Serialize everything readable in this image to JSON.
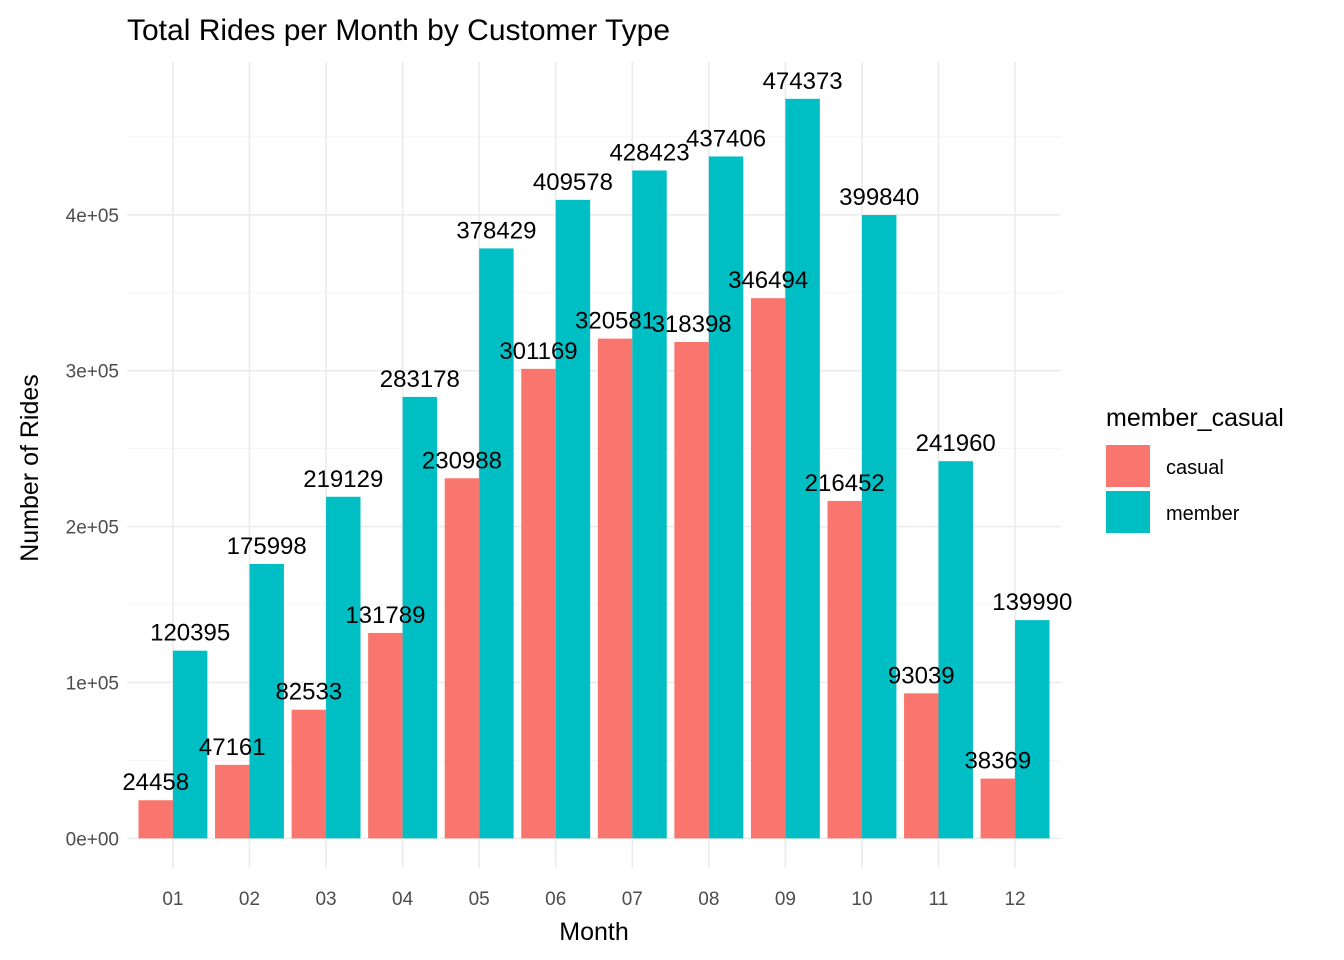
{
  "chart_data": {
    "type": "bar",
    "title": "Total Rides per Month by Customer Type",
    "xlabel": "Month",
    "ylabel": "Number of Rides",
    "categories": [
      "01",
      "02",
      "03",
      "04",
      "05",
      "06",
      "07",
      "08",
      "09",
      "10",
      "11",
      "12"
    ],
    "series": [
      {
        "name": "casual",
        "color": "#F8766D",
        "values": [
          24458,
          47161,
          82533,
          131789,
          230988,
          301169,
          320581,
          318398,
          346494,
          216452,
          93039,
          38369
        ],
        "labels": [
          "24458",
          "47161",
          "82533",
          "131789",
          "230988",
          "301169",
          "320581",
          "318398",
          "346494",
          "216452",
          "93039",
          "38369"
        ]
      },
      {
        "name": "member",
        "color": "#00BFC4",
        "values": [
          120395,
          175998,
          219129,
          283178,
          378429,
          409578,
          428423,
          437406,
          474373,
          399840,
          241960,
          139990
        ],
        "labels": [
          "120395",
          "175998",
          "219129",
          "283178",
          "378429",
          "409578",
          "428423",
          "437406",
          "474373",
          "399840",
          "241960",
          "139990"
        ]
      }
    ],
    "ylim": [
      -19000,
      498000
    ],
    "yticks": [
      0,
      100000,
      200000,
      300000,
      400000
    ],
    "ytick_labels": [
      "0e+00",
      "1e+05",
      "2e+05",
      "3e+05",
      "4e+05"
    ],
    "grid": true,
    "legend": {
      "title": "member_casual",
      "position": "right"
    }
  }
}
